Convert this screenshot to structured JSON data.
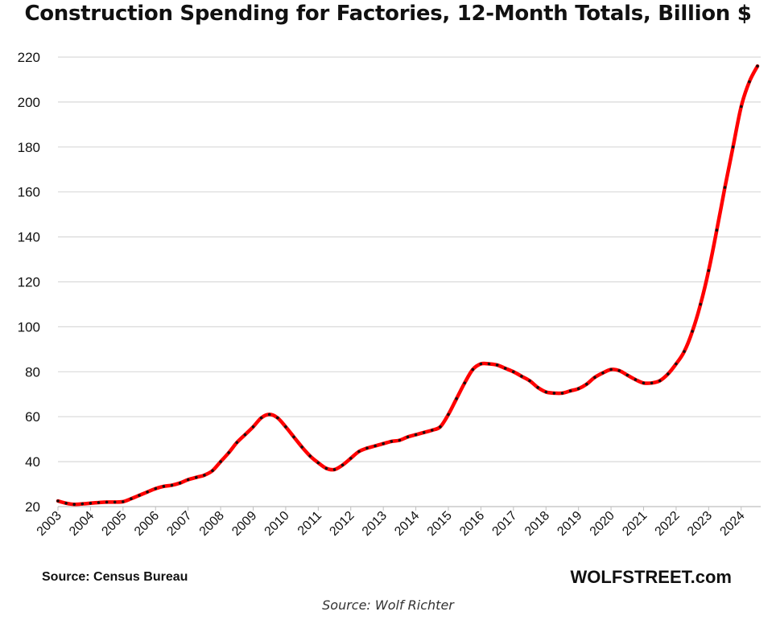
{
  "chart_data": {
    "type": "line",
    "title": "Construction Spending for Factories, 12-Month Totals, Billion $",
    "xlabel": "",
    "ylabel": "",
    "ylim": [
      20,
      220
    ],
    "yticks": [
      20,
      40,
      60,
      80,
      100,
      120,
      140,
      160,
      180,
      200,
      220
    ],
    "xlim": [
      2003,
      2024.6
    ],
    "xticks": [
      "2003",
      "2004",
      "2005",
      "2006",
      "2007",
      "2008",
      "2009",
      "2010",
      "2011",
      "2012",
      "2013",
      "2014",
      "2015",
      "2016",
      "2017",
      "2018",
      "2019",
      "2020",
      "2021",
      "2022",
      "2023",
      "2024"
    ],
    "grid": true,
    "legend": "none",
    "series": [
      {
        "color": "#ff0000",
        "marker_color": "#111111",
        "points": [
          [
            2003.0,
            22.5
          ],
          [
            2003.25,
            21.5
          ],
          [
            2003.5,
            21.0
          ],
          [
            2003.75,
            21.2
          ],
          [
            2004.0,
            21.5
          ],
          [
            2004.25,
            21.8
          ],
          [
            2004.5,
            22.0
          ],
          [
            2004.75,
            22.0
          ],
          [
            2005.0,
            22.2
          ],
          [
            2005.25,
            23.5
          ],
          [
            2005.5,
            25.0
          ],
          [
            2005.75,
            26.5
          ],
          [
            2006.0,
            28.0
          ],
          [
            2006.25,
            29.0
          ],
          [
            2006.5,
            29.5
          ],
          [
            2006.75,
            30.5
          ],
          [
            2007.0,
            32.0
          ],
          [
            2007.25,
            33.0
          ],
          [
            2007.5,
            34.0
          ],
          [
            2007.75,
            36.0
          ],
          [
            2008.0,
            40.0
          ],
          [
            2008.25,
            44.0
          ],
          [
            2008.5,
            48.5
          ],
          [
            2008.75,
            52.0
          ],
          [
            2009.0,
            55.5
          ],
          [
            2009.25,
            59.5
          ],
          [
            2009.5,
            61.0
          ],
          [
            2009.75,
            59.5
          ],
          [
            2010.0,
            55.5
          ],
          [
            2010.25,
            51.0
          ],
          [
            2010.5,
            46.5
          ],
          [
            2010.75,
            42.5
          ],
          [
            2011.0,
            39.5
          ],
          [
            2011.25,
            37.0
          ],
          [
            2011.5,
            36.5
          ],
          [
            2011.75,
            38.5
          ],
          [
            2012.0,
            41.5
          ],
          [
            2012.25,
            44.5
          ],
          [
            2012.5,
            46.0
          ],
          [
            2012.75,
            47.0
          ],
          [
            2013.0,
            48.0
          ],
          [
            2013.25,
            49.0
          ],
          [
            2013.5,
            49.5
          ],
          [
            2013.75,
            51.0
          ],
          [
            2014.0,
            52.0
          ],
          [
            2014.25,
            53.0
          ],
          [
            2014.5,
            54.0
          ],
          [
            2014.75,
            55.5
          ],
          [
            2015.0,
            61.0
          ],
          [
            2015.25,
            68.0
          ],
          [
            2015.5,
            75.0
          ],
          [
            2015.75,
            81.0
          ],
          [
            2016.0,
            83.5
          ],
          [
            2016.25,
            83.5
          ],
          [
            2016.5,
            83.0
          ],
          [
            2016.75,
            81.5
          ],
          [
            2017.0,
            80.0
          ],
          [
            2017.25,
            78.0
          ],
          [
            2017.5,
            76.0
          ],
          [
            2017.75,
            73.0
          ],
          [
            2018.0,
            71.0
          ],
          [
            2018.25,
            70.5
          ],
          [
            2018.5,
            70.5
          ],
          [
            2018.75,
            71.5
          ],
          [
            2019.0,
            72.5
          ],
          [
            2019.25,
            74.5
          ],
          [
            2019.5,
            77.5
          ],
          [
            2019.75,
            79.5
          ],
          [
            2020.0,
            81.0
          ],
          [
            2020.25,
            80.5
          ],
          [
            2020.5,
            78.5
          ],
          [
            2020.75,
            76.5
          ],
          [
            2021.0,
            75.0
          ],
          [
            2021.25,
            75.0
          ],
          [
            2021.5,
            76.0
          ],
          [
            2021.75,
            79.0
          ],
          [
            2022.0,
            83.5
          ],
          [
            2022.25,
            89.0
          ],
          [
            2022.5,
            98.0
          ],
          [
            2022.75,
            110.0
          ],
          [
            2023.0,
            125.0
          ],
          [
            2023.25,
            143.0
          ],
          [
            2023.5,
            162.0
          ],
          [
            2023.75,
            180.0
          ],
          [
            2024.0,
            198.0
          ],
          [
            2024.25,
            209.0
          ],
          [
            2024.5,
            216.0
          ]
        ]
      }
    ]
  },
  "footer": {
    "source_note": "Source: Census Bureau",
    "brand": "WOLFSTREET.com"
  },
  "caption": "Source: Wolf Richter"
}
